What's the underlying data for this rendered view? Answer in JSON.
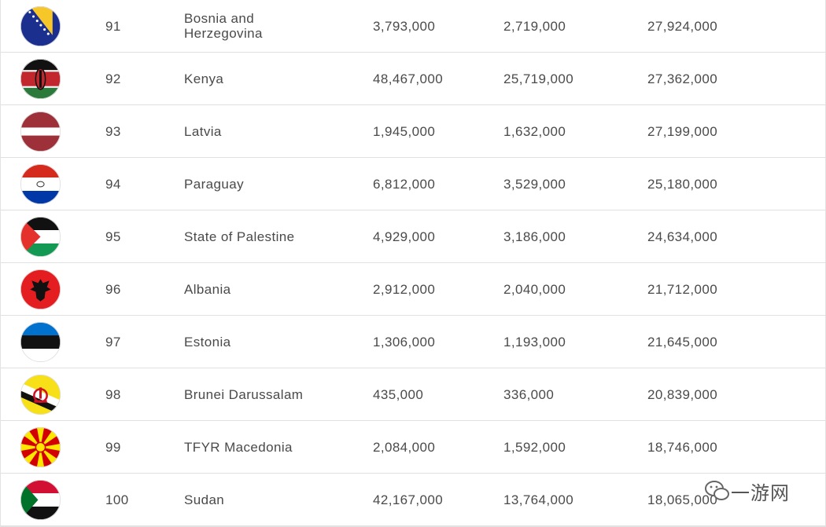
{
  "table": {
    "rows": [
      [
        "91",
        "Bosnia and Herzegovina",
        "3,793,000",
        "2,719,000",
        "27,924,000"
      ],
      [
        "92",
        "Kenya",
        "48,467,000",
        "25,719,000",
        "27,362,000"
      ],
      [
        "93",
        "Latvia",
        "1,945,000",
        "1,632,000",
        "27,199,000"
      ],
      [
        "94",
        "Paraguay",
        "6,812,000",
        "3,529,000",
        "25,180,000"
      ],
      [
        "95",
        "State of Palestine",
        "4,929,000",
        "3,186,000",
        "24,634,000"
      ],
      [
        "96",
        "Albania",
        "2,912,000",
        "2,040,000",
        "21,712,000"
      ],
      [
        "97",
        "Estonia",
        "1,306,000",
        "1,193,000",
        "21,645,000"
      ],
      [
        "98",
        "Brunei Darussalam",
        "435,000",
        "336,000",
        "20,839,000"
      ],
      [
        "99",
        "TFYR Macedonia",
        "2,084,000",
        "1,592,000",
        "18,746,000"
      ],
      [
        "100",
        "Sudan",
        "42,167,000",
        "13,764,000",
        "18,065,000"
      ]
    ]
  },
  "watermark": "一游网"
}
